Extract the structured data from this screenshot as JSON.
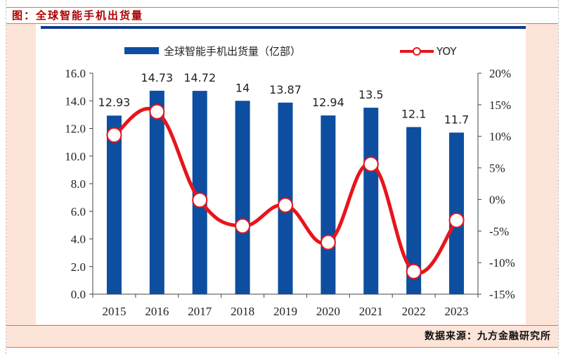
{
  "header": {
    "title": "图：全球智能手机出货量"
  },
  "footer": {
    "source": "数据来源：九方金融研究所"
  },
  "colors": {
    "bar": "#0d4ea0",
    "line": "#e8141c",
    "marker_fill": "#ffffff",
    "title": "#b00000",
    "accent": "#e07a3a",
    "panel": "#fce4d8"
  },
  "chart_data": {
    "type": "bar+line",
    "title": "",
    "categories": [
      "2015",
      "2016",
      "2017",
      "2018",
      "2019",
      "2020",
      "2021",
      "2022",
      "2023"
    ],
    "series": [
      {
        "name": "全球智能手机出货量（亿部）",
        "type": "bar",
        "axis": "left",
        "values": [
          12.93,
          14.73,
          14.72,
          14,
          13.87,
          12.94,
          13.5,
          12.1,
          11.7
        ],
        "labels": [
          "12.93",
          "14.73",
          "14.72",
          "14",
          "13.87",
          "12.94",
          "13.5",
          "12.1",
          "11.7"
        ]
      },
      {
        "name": "YOY",
        "type": "line",
        "axis": "right",
        "smooth": true,
        "values": [
          10.2,
          13.9,
          -0.1,
          -4.2,
          -0.9,
          -6.8,
          5.6,
          -11.4,
          -3.3
        ]
      }
    ],
    "y_left": {
      "min": 0,
      "max": 16,
      "step": 2,
      "ticks": [
        "0.0",
        "2.0",
        "4.0",
        "6.0",
        "8.0",
        "10.0",
        "12.0",
        "14.0",
        "16.0"
      ]
    },
    "y_right": {
      "min": -15,
      "max": 20,
      "step": 5,
      "ticks": [
        "-15%",
        "-10%",
        "-5%",
        "0%",
        "5%",
        "10%",
        "15%",
        "20%"
      ]
    },
    "xlabel": "",
    "ylabel": "",
    "legend": {
      "position": "top",
      "items": [
        "全球智能手机出货量（亿部）",
        "YOY"
      ]
    },
    "grid": false
  }
}
